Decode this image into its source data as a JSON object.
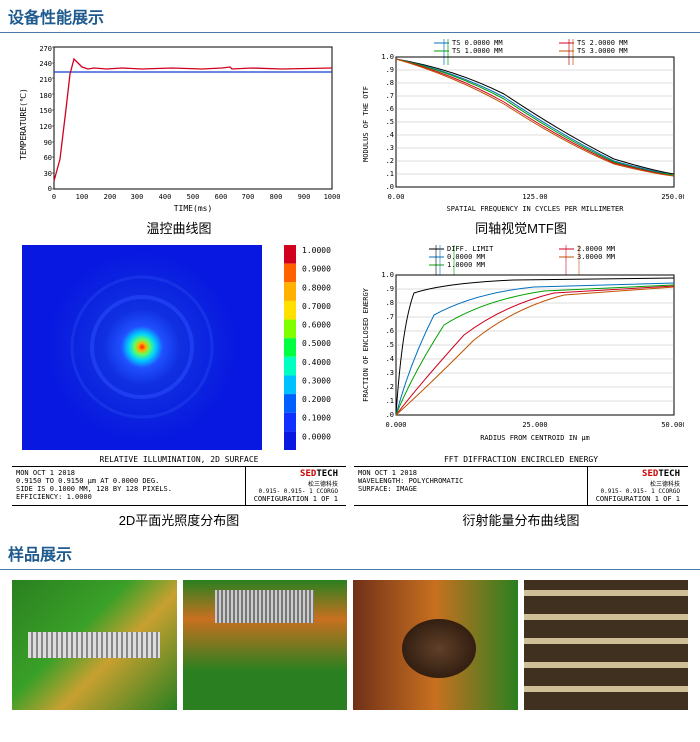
{
  "section_perf": "设备性能展示",
  "section_samples": "样品展示",
  "chart1": {
    "caption": "温控曲线图",
    "ylabel": "TEMPERATURE(℃)",
    "xlabel": "TIME(ms)",
    "yticks": [
      "0",
      "30",
      "60",
      "90",
      "120",
      "150",
      "180",
      "210",
      "240",
      "270"
    ],
    "xticks": [
      "0",
      "100",
      "200",
      "300",
      "400",
      "500",
      "600",
      "700",
      "800",
      "900",
      "1000"
    ],
    "line_color": "#d00020",
    "ref_color": "#1040d0",
    "bg": "#ffffff",
    "axis_color": "#000",
    "red_y": 228,
    "ref_y": 220
  },
  "chart2": {
    "caption": "同轴视觉MTF图",
    "ylabel": "MODULUS OF THE OTF",
    "xlabel": "SPATIAL FREQUENCY IN CYCLES PER MILLIMETER",
    "yticks": [
      ".0",
      ".1",
      ".2",
      ".3",
      ".4",
      ".5",
      ".6",
      ".7",
      ".8",
      ".9",
      "1.0"
    ],
    "xticks": [
      "0.00",
      "125.00",
      "250.00"
    ],
    "legend": [
      "TS 0.0000 MM",
      "TS 1.0000 MM",
      "TS 2.0000 MM",
      "TS 3.0000 MM"
    ],
    "series_colors": [
      "#000",
      "#0070c0",
      "#00a000",
      "#d00020",
      "#c05000"
    ],
    "legend_marks": [
      "#0070c0",
      "#00a000",
      "#d00020",
      "#c05000"
    ]
  },
  "chart3": {
    "caption": "2D平面光照度分布图",
    "title_below": "RELATIVE ILLUMINATION, 2D SURFACE",
    "meta": "MON OCT 1 2018\n0.9150 TO 0.9150 μm AT 0.0000 DEG.\nSIDE IS 0.1000 MM, 128 BY 128 PIXELS.\nEFFICIENCY: 1.0000",
    "config": "CONFIGURATION 1 OF 1",
    "id3": "0.915-  0.915-  1 CCORGO",
    "scale_vals": [
      "1.0000",
      "0.9000",
      "0.8000",
      "0.7000",
      "0.6000",
      "0.5000",
      "0.4000",
      "0.3000",
      "0.2000",
      "0.1000",
      "0.0000"
    ],
    "scale_colors": [
      "#d00020",
      "#ff6000",
      "#ffb000",
      "#ffe000",
      "#80ff00",
      "#00ff40",
      "#00ffc0",
      "#00c0ff",
      "#0060ff",
      "#1030ff",
      "#0818e0"
    ]
  },
  "chart4": {
    "caption": "衍射能量分布曲线图",
    "ylabel": "FRACTION OF ENCLOSED ENERGY",
    "xlabel": "RADIUS FROM CENTROID IN μm",
    "yticks": [
      ".0",
      ".1",
      ".2",
      ".3",
      ".4",
      ".5",
      ".6",
      ".7",
      ".8",
      ".9",
      "1.0"
    ],
    "xticks": [
      "0.000",
      "25.000",
      "50.000"
    ],
    "legend": [
      "DIFF. LIMIT",
      "0.0000 MM",
      "1.0000 MM",
      "2.0000 MM",
      "3.0000 MM"
    ],
    "title_below": "FFT DIFFRACTION ENCIRCLED ENERGY",
    "meta": "MON OCT 1 2018\nWAVELENGTH: POLYCHROMATIC\nSURFACE: IMAGE",
    "config": "CONFIGURATION 1 OF 1",
    "id4": "0.915-  0.915-  1 CCORGO",
    "legend_marks": [
      "#000",
      "#0070c0",
      "#00a000",
      "#d00020",
      "#c05000"
    ],
    "series_colors": [
      "#000",
      "#0070c0",
      "#00a000",
      "#d00020",
      "#c05000"
    ]
  },
  "logo_text": "SEDTECH",
  "logo_sub": "松三德科技"
}
